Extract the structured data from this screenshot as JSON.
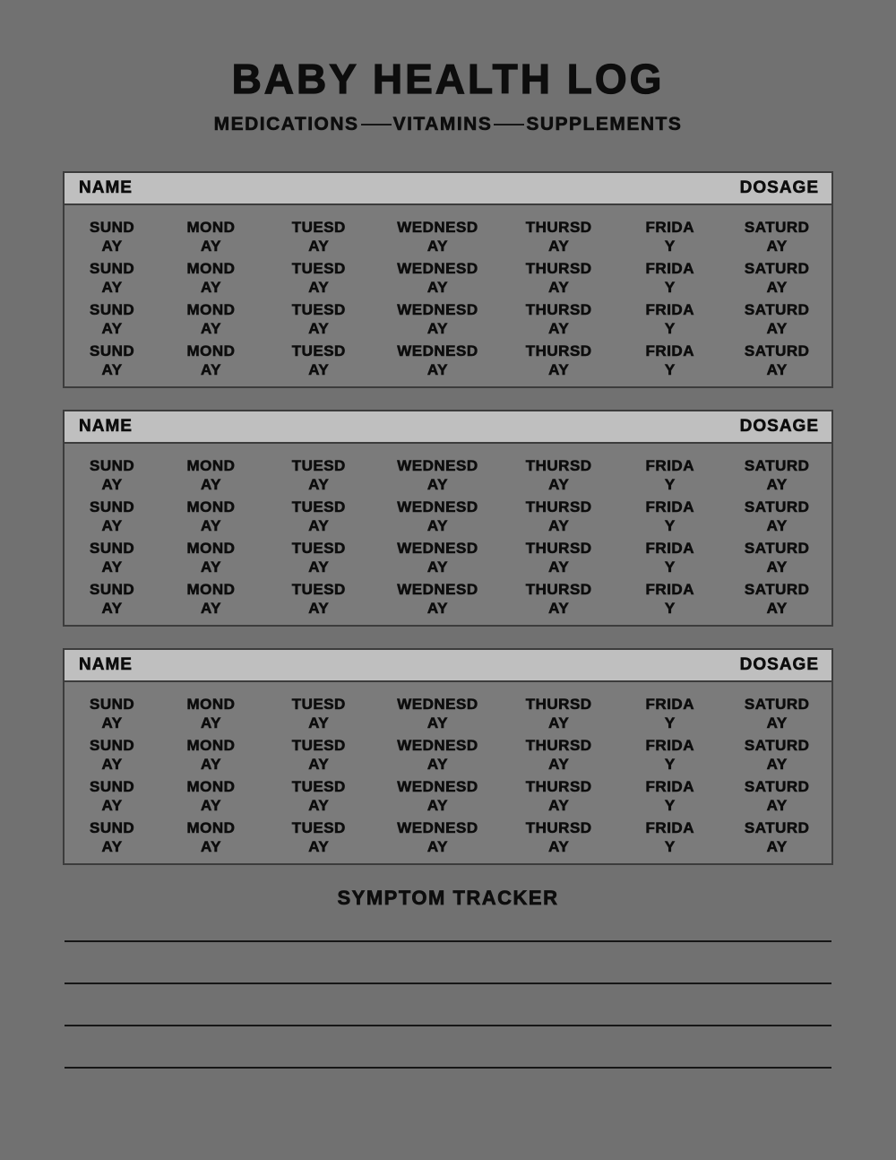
{
  "page": {
    "title": "BABY HEALTH LOG",
    "subtitle_words": [
      "MEDICATIONS",
      "VITAMINS",
      "SUPPLEMENTS"
    ]
  },
  "days": [
    {
      "line1": "SUND",
      "line2": "AY"
    },
    {
      "line1": "MOND",
      "line2": "AY"
    },
    {
      "line1": "TUESD",
      "line2": "AY"
    },
    {
      "line1": "WEDNESD",
      "line2": "AY"
    },
    {
      "line1": "THURSD",
      "line2": "AY"
    },
    {
      "line1": "FRIDA",
      "line2": "Y"
    },
    {
      "line1": "SATURD",
      "line2": "AY"
    }
  ],
  "sections": [
    {
      "name_label": "NAME",
      "dosage_label": "DOSAGE",
      "day_rows": 4
    },
    {
      "name_label": "NAME",
      "dosage_label": "DOSAGE",
      "day_rows": 4
    },
    {
      "name_label": "NAME",
      "dosage_label": "DOSAGE",
      "day_rows": 4
    }
  ],
  "symptom_tracker": {
    "heading": "SYMPTOM TRACKER",
    "line_count": 4
  },
  "colors": {
    "page_bg": "#717171",
    "table_body_bg": "#7b7b7b",
    "header_bar_bg": "#bfbfbf",
    "border": "#3c3c3c",
    "text": "#0d0d0d",
    "line": "#161616"
  }
}
